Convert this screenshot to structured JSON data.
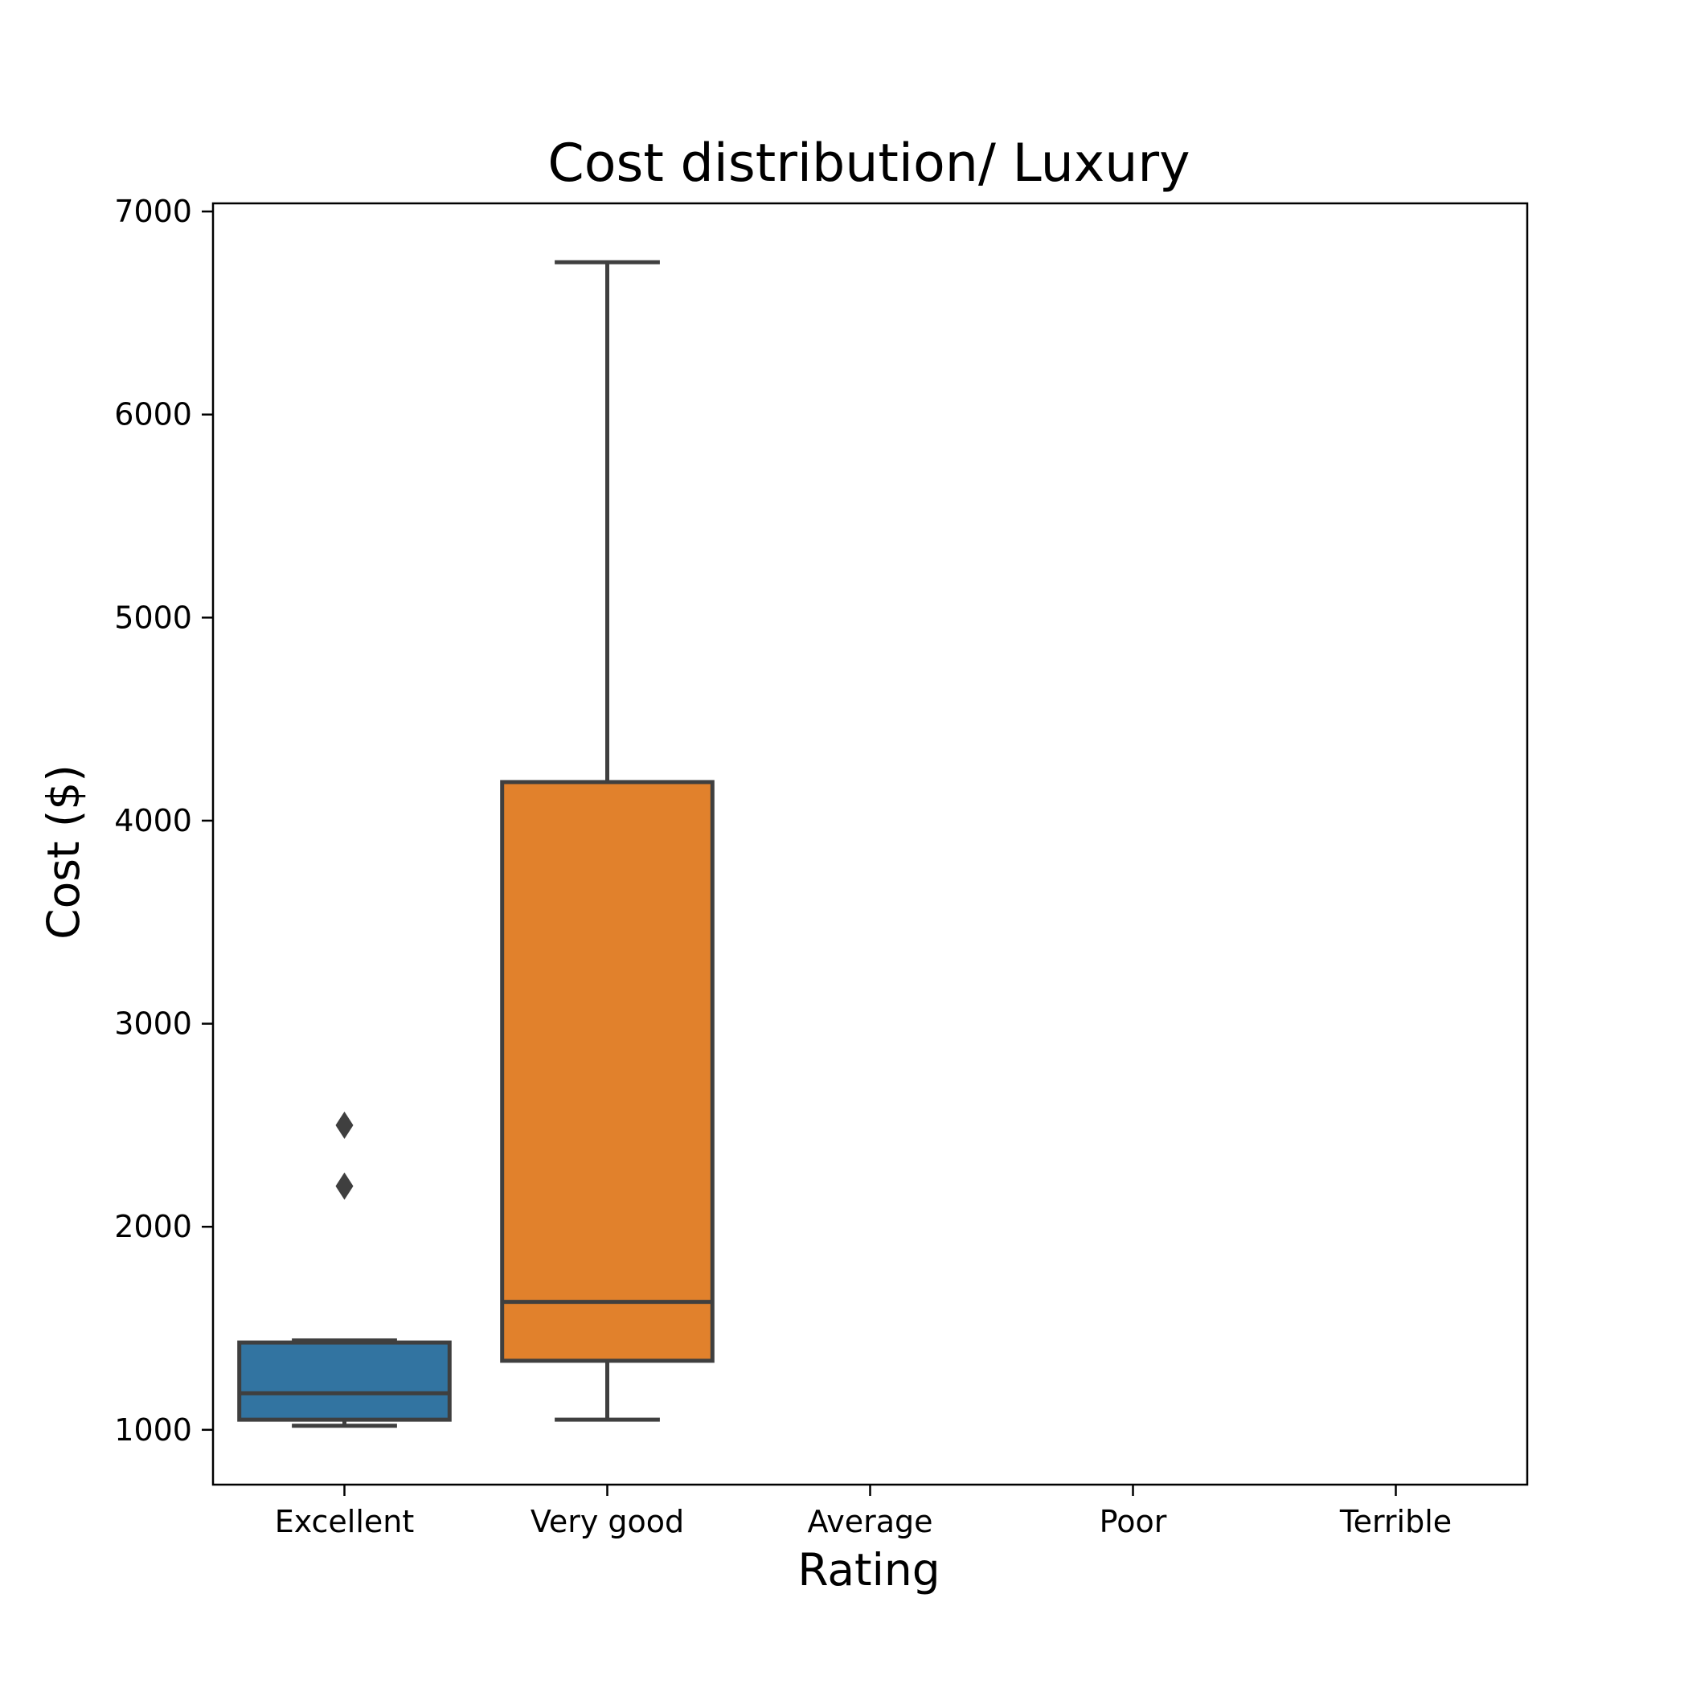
{
  "chart_data": {
    "type": "box",
    "title": "Cost distribution/ Luxury",
    "xlabel": "Rating",
    "ylabel": "Cost ($)",
    "categories": [
      "Excellent",
      "Very good",
      "Average",
      "Poor",
      "Terrible"
    ],
    "ylim": [
      730,
      7040
    ],
    "yticks": [
      1000,
      2000,
      3000,
      4000,
      5000,
      6000,
      7000
    ],
    "grid": false,
    "colors": {
      "Excellent": "#3274a1",
      "Very good": "#e1812c",
      "line": "#3f3f3f",
      "axis": "#000000"
    },
    "boxes": [
      {
        "category": "Excellent",
        "whisker_low": 1020,
        "q1": 1050,
        "median": 1180,
        "q3": 1430,
        "whisker_high": 1440,
        "outliers": [
          2200,
          2500
        ]
      },
      {
        "category": "Very good",
        "whisker_low": 1050,
        "q1": 1340,
        "median": 1630,
        "q3": 4190,
        "whisker_high": 6750,
        "outliers": []
      }
    ]
  }
}
